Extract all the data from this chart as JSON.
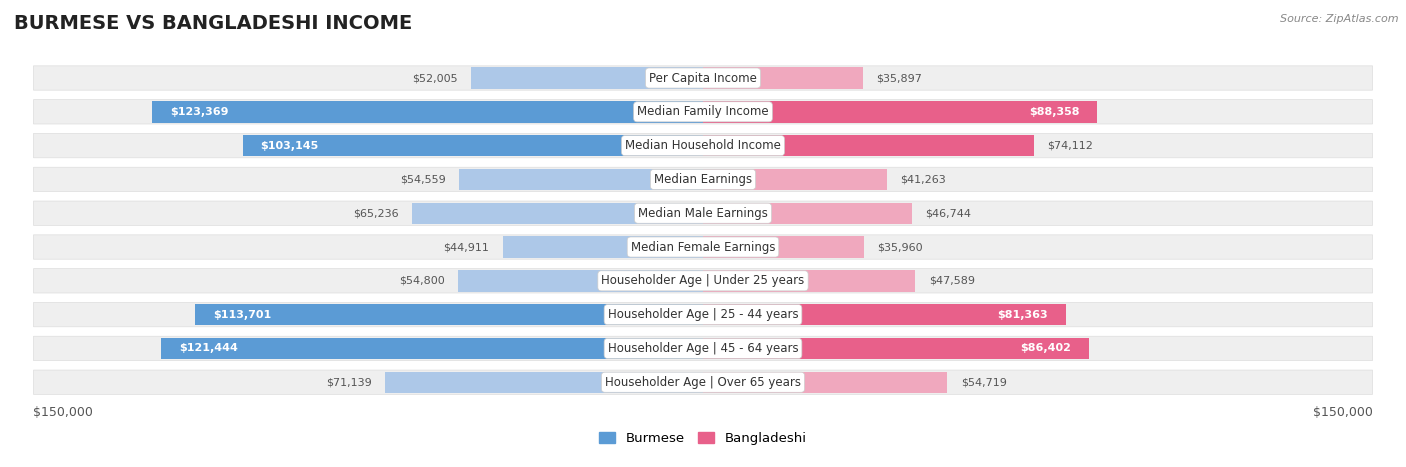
{
  "title": "BURMESE VS BANGLADESHI INCOME",
  "source": "Source: ZipAtlas.com",
  "categories": [
    "Per Capita Income",
    "Median Family Income",
    "Median Household Income",
    "Median Earnings",
    "Median Male Earnings",
    "Median Female Earnings",
    "Householder Age | Under 25 years",
    "Householder Age | 25 - 44 years",
    "Householder Age | 45 - 64 years",
    "Householder Age | Over 65 years"
  ],
  "burmese_values": [
    52005,
    123369,
    103145,
    54559,
    65236,
    44911,
    54800,
    113701,
    121444,
    71139
  ],
  "bangladeshi_values": [
    35897,
    88358,
    74112,
    41263,
    46744,
    35960,
    47589,
    81363,
    86402,
    54719
  ],
  "max_val": 150000,
  "burmese_color_dark": "#5b9bd5",
  "burmese_color_light": "#adc8e8",
  "bangladeshi_color_dark": "#e8608a",
  "bangladeshi_color_light": "#f0a8be",
  "dark_threshold_bur": 80000,
  "dark_threshold_ban": 70000,
  "label_inside_threshold": 80000,
  "burmese_label": "Burmese",
  "bangladeshi_label": "Bangladeshi",
  "bg_color": "#ffffff",
  "row_bg": "#efefef",
  "axis_label_left": "$150,000",
  "axis_label_right": "$150,000",
  "title_fontsize": 14,
  "source_fontsize": 8,
  "bar_label_fontsize": 8,
  "cat_label_fontsize": 8.5
}
